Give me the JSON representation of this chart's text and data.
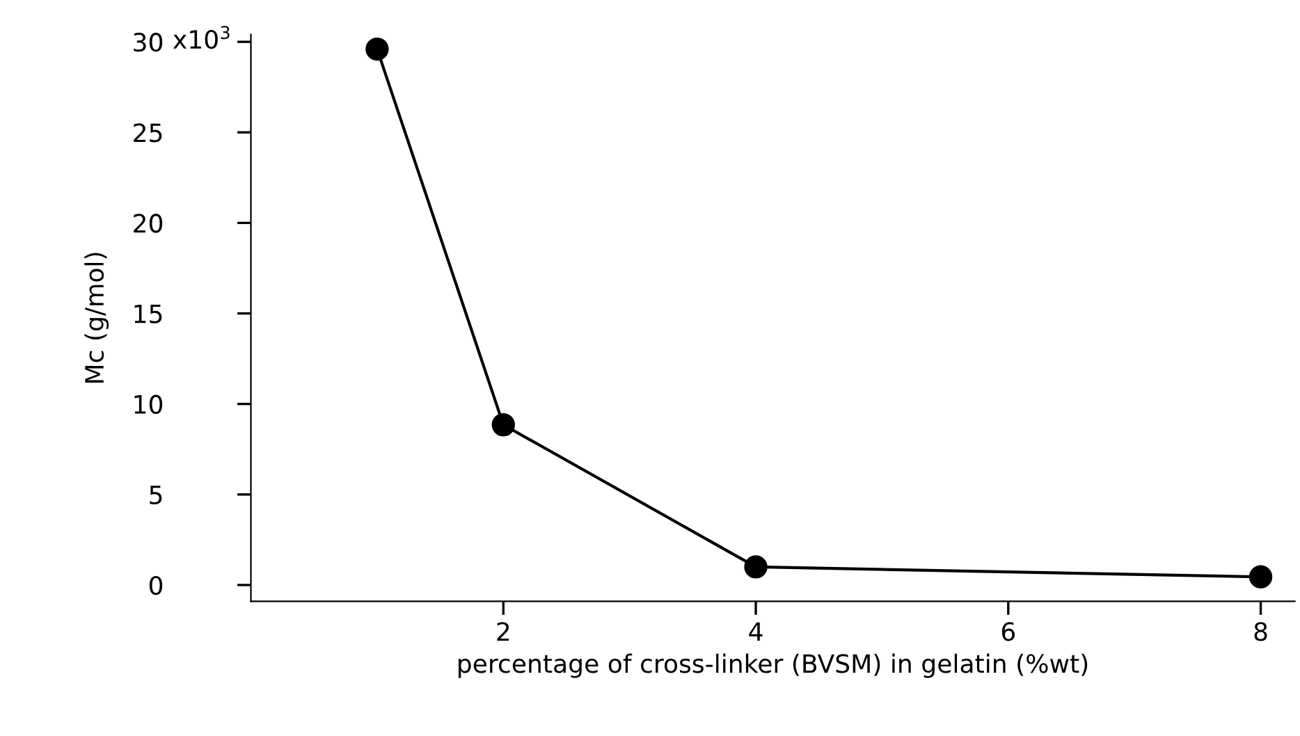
{
  "chart_data": {
    "type": "line",
    "x": [
      1,
      2,
      4,
      8
    ],
    "series": [
      {
        "color": "#000000",
        "values": [
          29.6,
          8.85,
          1.0,
          0.45
        ]
      }
    ],
    "annotations": [
      "x10$^{3}$"
    ],
    "xlabel": "percentage of cross-linker (BVSM) in gelatin (%wt)",
    "ylabel": "Mc (g/mol)",
    "xlim": [
      0,
      8.27
    ],
    "xticks": [
      2,
      4,
      6,
      8
    ],
    "ylim": [
      -0.9,
      30.4
    ],
    "yticks": [
      0,
      5,
      10,
      15,
      20,
      25,
      30
    ],
    "marker": "circle",
    "line_style": "solid",
    "grid": false,
    "legend": false
  }
}
